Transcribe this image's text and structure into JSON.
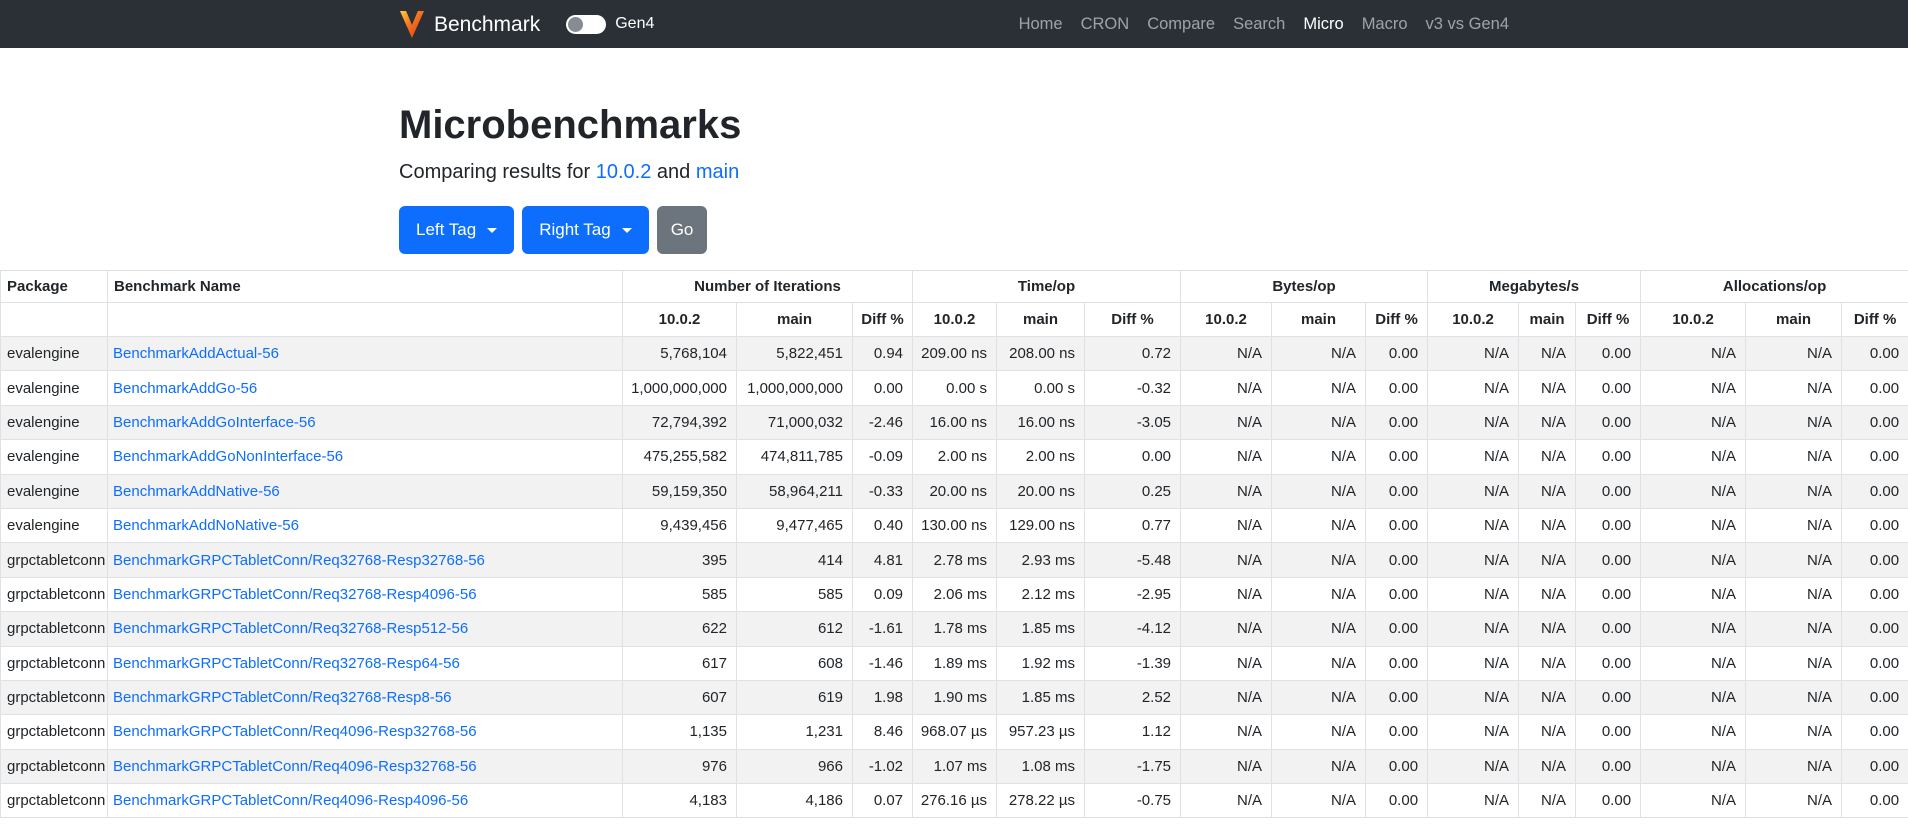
{
  "colors": {
    "accent": "#0d6efd",
    "navbar_bg": "#2b3036",
    "secondary_button": "#6c757d",
    "row_stripe": "#f2f2f2",
    "table_border": "#dee2e6",
    "logo_orange": "#ffc83d",
    "logo_red": "#d8341c"
  },
  "navbar": {
    "brand": "Benchmark",
    "logo_icon": "vitess-v-logo",
    "toggle_label": "Gen4",
    "toggle_state": "off",
    "items": [
      {
        "label": "Home",
        "active": false
      },
      {
        "label": "CRON",
        "active": false
      },
      {
        "label": "Compare",
        "active": false
      },
      {
        "label": "Search",
        "active": false
      },
      {
        "label": "Micro",
        "active": true
      },
      {
        "label": "Macro",
        "active": false
      },
      {
        "label": "v3 vs Gen4",
        "active": false
      }
    ]
  },
  "header": {
    "title": "Microbenchmarks",
    "subtitle_prefix": "Comparing results for ",
    "left_tag": "10.0.2",
    "conjunction": " and ",
    "right_tag": "main"
  },
  "toolbar": {
    "left_tag_label": "Left Tag",
    "right_tag_label": "Right Tag",
    "go_label": "Go"
  },
  "table": {
    "column_package": "Package",
    "column_name": "Benchmark Name",
    "groups": [
      "Number of Iterations",
      "Time/op",
      "Bytes/op",
      "Megabytes/s",
      "Allocations/op"
    ],
    "subcols": [
      "10.0.2",
      "main",
      "Diff %"
    ],
    "rows": [
      {
        "package": "evalengine",
        "name": "BenchmarkAddActual-56",
        "values": [
          "5,768,104",
          "5,822,451",
          "0.94",
          "209.00 ns",
          "208.00 ns",
          "0.72",
          "N/A",
          "N/A",
          "0.00",
          "N/A",
          "N/A",
          "0.00",
          "N/A",
          "N/A",
          "0.00"
        ]
      },
      {
        "package": "evalengine",
        "name": "BenchmarkAddGo-56",
        "values": [
          "1,000,000,000",
          "1,000,000,000",
          "0.00",
          "0.00 s",
          "0.00 s",
          "-0.32",
          "N/A",
          "N/A",
          "0.00",
          "N/A",
          "N/A",
          "0.00",
          "N/A",
          "N/A",
          "0.00"
        ]
      },
      {
        "package": "evalengine",
        "name": "BenchmarkAddGoInterface-56",
        "values": [
          "72,794,392",
          "71,000,032",
          "-2.46",
          "16.00 ns",
          "16.00 ns",
          "-3.05",
          "N/A",
          "N/A",
          "0.00",
          "N/A",
          "N/A",
          "0.00",
          "N/A",
          "N/A",
          "0.00"
        ]
      },
      {
        "package": "evalengine",
        "name": "BenchmarkAddGoNonInterface-56",
        "values": [
          "475,255,582",
          "474,811,785",
          "-0.09",
          "2.00 ns",
          "2.00 ns",
          "0.00",
          "N/A",
          "N/A",
          "0.00",
          "N/A",
          "N/A",
          "0.00",
          "N/A",
          "N/A",
          "0.00"
        ]
      },
      {
        "package": "evalengine",
        "name": "BenchmarkAddNative-56",
        "values": [
          "59,159,350",
          "58,964,211",
          "-0.33",
          "20.00 ns",
          "20.00 ns",
          "0.25",
          "N/A",
          "N/A",
          "0.00",
          "N/A",
          "N/A",
          "0.00",
          "N/A",
          "N/A",
          "0.00"
        ]
      },
      {
        "package": "evalengine",
        "name": "BenchmarkAddNoNative-56",
        "values": [
          "9,439,456",
          "9,477,465",
          "0.40",
          "130.00 ns",
          "129.00 ns",
          "0.77",
          "N/A",
          "N/A",
          "0.00",
          "N/A",
          "N/A",
          "0.00",
          "N/A",
          "N/A",
          "0.00"
        ]
      },
      {
        "package": "grpctabletconn",
        "name": "BenchmarkGRPCTabletConn/Req32768-Resp32768-56",
        "values": [
          "395",
          "414",
          "4.81",
          "2.78 ms",
          "2.93 ms",
          "-5.48",
          "N/A",
          "N/A",
          "0.00",
          "N/A",
          "N/A",
          "0.00",
          "N/A",
          "N/A",
          "0.00"
        ]
      },
      {
        "package": "grpctabletconn",
        "name": "BenchmarkGRPCTabletConn/Req32768-Resp4096-56",
        "values": [
          "585",
          "585",
          "0.09",
          "2.06 ms",
          "2.12 ms",
          "-2.95",
          "N/A",
          "N/A",
          "0.00",
          "N/A",
          "N/A",
          "0.00",
          "N/A",
          "N/A",
          "0.00"
        ]
      },
      {
        "package": "grpctabletconn",
        "name": "BenchmarkGRPCTabletConn/Req32768-Resp512-56",
        "values": [
          "622",
          "612",
          "-1.61",
          "1.78 ms",
          "1.85 ms",
          "-4.12",
          "N/A",
          "N/A",
          "0.00",
          "N/A",
          "N/A",
          "0.00",
          "N/A",
          "N/A",
          "0.00"
        ]
      },
      {
        "package": "grpctabletconn",
        "name": "BenchmarkGRPCTabletConn/Req32768-Resp64-56",
        "values": [
          "617",
          "608",
          "-1.46",
          "1.89 ms",
          "1.92 ms",
          "-1.39",
          "N/A",
          "N/A",
          "0.00",
          "N/A",
          "N/A",
          "0.00",
          "N/A",
          "N/A",
          "0.00"
        ]
      },
      {
        "package": "grpctabletconn",
        "name": "BenchmarkGRPCTabletConn/Req32768-Resp8-56",
        "values": [
          "607",
          "619",
          "1.98",
          "1.90 ms",
          "1.85 ms",
          "2.52",
          "N/A",
          "N/A",
          "0.00",
          "N/A",
          "N/A",
          "0.00",
          "N/A",
          "N/A",
          "0.00"
        ]
      },
      {
        "package": "grpctabletconn",
        "name": "BenchmarkGRPCTabletConn/Req4096-Resp32768-56",
        "values": [
          "1,135",
          "1,231",
          "8.46",
          "968.07 µs",
          "957.23 µs",
          "1.12",
          "N/A",
          "N/A",
          "0.00",
          "N/A",
          "N/A",
          "0.00",
          "N/A",
          "N/A",
          "0.00"
        ]
      },
      {
        "package": "grpctabletconn",
        "name": "BenchmarkGRPCTabletConn/Req4096-Resp32768-56",
        "values": [
          "976",
          "966",
          "-1.02",
          "1.07 ms",
          "1.08 ms",
          "-1.75",
          "N/A",
          "N/A",
          "0.00",
          "N/A",
          "N/A",
          "0.00",
          "N/A",
          "N/A",
          "0.00"
        ]
      },
      {
        "package": "grpctabletconn",
        "name": "BenchmarkGRPCTabletConn/Req4096-Resp4096-56",
        "values": [
          "4,183",
          "4,186",
          "0.07",
          "276.16 µs",
          "278.22 µs",
          "-0.75",
          "N/A",
          "N/A",
          "0.00",
          "N/A",
          "N/A",
          "0.00",
          "N/A",
          "N/A",
          "0.00"
        ]
      }
    ]
  }
}
